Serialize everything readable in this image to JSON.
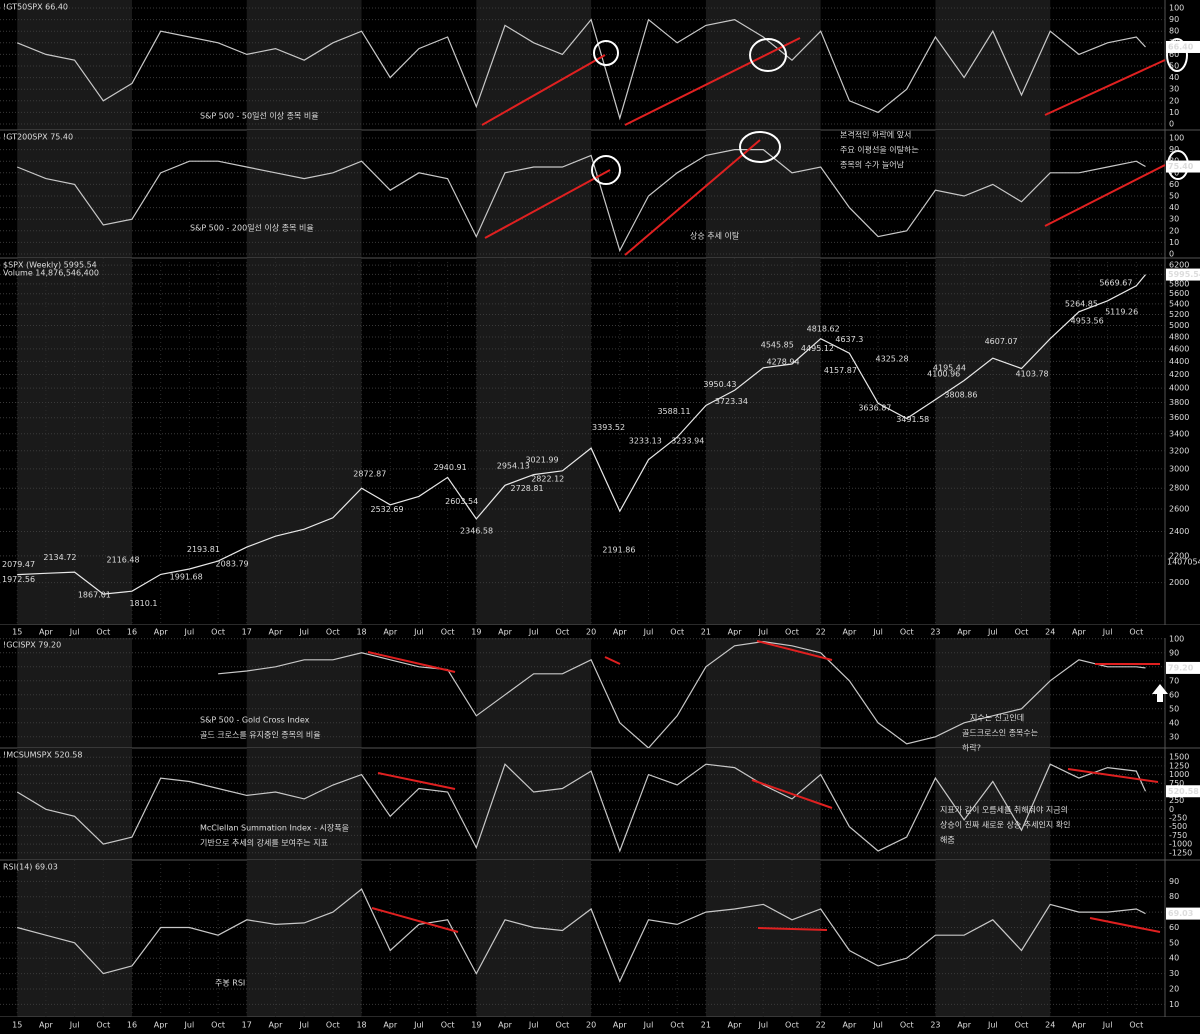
{
  "chart_data": [
    {
      "type": "line",
      "title": "!GT50SPX 66.40",
      "last_label": "66.40",
      "color": "#c8c8c8",
      "x": [
        2015,
        2015.25,
        2015.5,
        2015.75,
        2016,
        2016.25,
        2016.5,
        2016.75,
        2017,
        2017.25,
        2017.5,
        2017.75,
        2018,
        2018.25,
        2018.5,
        2018.75,
        2019,
        2019.25,
        2019.5,
        2019.75,
        2020,
        2020.25,
        2020.5,
        2020.75,
        2021,
        2021.25,
        2021.5,
        2021.75,
        2022,
        2022.25,
        2022.5,
        2022.75,
        2023,
        2023.25,
        2023.5,
        2023.75,
        2024,
        2024.25,
        2024.5,
        2024.75,
        2024.83
      ],
      "values": [
        70,
        60,
        55,
        20,
        35,
        80,
        75,
        70,
        60,
        65,
        55,
        70,
        80,
        40,
        65,
        75,
        15,
        85,
        70,
        60,
        90,
        5,
        90,
        70,
        85,
        90,
        75,
        55,
        80,
        20,
        10,
        30,
        75,
        40,
        80,
        25,
        80,
        60,
        70,
        75,
        66.4
      ],
      "xlim": [
        2014.85,
        2025.0
      ],
      "ylim": [
        0,
        100
      ],
      "yticks": [
        0,
        10,
        20,
        30,
        40,
        50,
        60,
        70,
        80,
        90,
        100
      ],
      "grid": true,
      "texts": [
        "S&P 500 - 50일선 이상 종목 비율"
      ]
    },
    {
      "type": "line",
      "title": "!GT200SPX 75.40",
      "last_label": "75.40",
      "color": "#c8c8c8",
      "x": [
        2015,
        2015.25,
        2015.5,
        2015.75,
        2016,
        2016.25,
        2016.5,
        2016.75,
        2017,
        2017.25,
        2017.5,
        2017.75,
        2018,
        2018.25,
        2018.5,
        2018.75,
        2019,
        2019.25,
        2019.5,
        2019.75,
        2020,
        2020.25,
        2020.5,
        2020.75,
        2021,
        2021.25,
        2021.5,
        2021.75,
        2022,
        2022.25,
        2022.5,
        2022.75,
        2023,
        2023.25,
        2023.5,
        2023.75,
        2024,
        2024.25,
        2024.5,
        2024.75,
        2024.83
      ],
      "values": [
        75,
        65,
        60,
        25,
        30,
        70,
        80,
        80,
        75,
        70,
        65,
        70,
        80,
        55,
        70,
        65,
        15,
        70,
        75,
        75,
        85,
        3,
        50,
        70,
        85,
        90,
        90,
        70,
        75,
        40,
        15,
        20,
        55,
        50,
        60,
        45,
        70,
        70,
        75,
        80,
        75.4
      ],
      "xlim": [
        2014.85,
        2025.0
      ],
      "ylim": [
        0,
        100
      ],
      "yticks": [
        0,
        10,
        20,
        30,
        40,
        50,
        60,
        70,
        80,
        90,
        100
      ],
      "grid": true,
      "texts": [
        "S&P 500 - 200일선 이상 종목 비율",
        "상승 추세 이탈",
        "본격적인 하락에 앞서",
        "주요 이평선을 이탈하는",
        "종목의 수가 늘어남"
      ]
    },
    {
      "type": "line",
      "title": "$SPX (Weekly) 5995.54",
      "subtitle": "Volume 14,876,546,400",
      "last_label": "5995.54",
      "volume_last_label": "1407054",
      "color": "#e8e8e8",
      "log": true,
      "x": [
        2015,
        2015.25,
        2015.5,
        2015.75,
        2016,
        2016.25,
        2016.5,
        2016.75,
        2017,
        2017.25,
        2017.5,
        2017.75,
        2018,
        2018.25,
        2018.5,
        2018.75,
        2019,
        2019.25,
        2019.5,
        2019.75,
        2020,
        2020.25,
        2020.5,
        2020.75,
        2021,
        2021.25,
        2021.5,
        2021.75,
        2022,
        2022.25,
        2022.5,
        2022.75,
        2023,
        2023.25,
        2023.5,
        2023.75,
        2024,
        2024.25,
        2024.5,
        2024.75,
        2024.83
      ],
      "values": [
        2058,
        2068,
        2077,
        1920,
        1940,
        2060,
        2100,
        2160,
        2270,
        2360,
        2420,
        2520,
        2800,
        2640,
        2720,
        2910,
        2510,
        2830,
        2940,
        2980,
        3230,
        2580,
        3100,
        3360,
        3760,
        3970,
        4300,
        4360,
        4770,
        4530,
        3790,
        3590,
        3840,
        4110,
        4450,
        4290,
        4770,
        5250,
        5460,
        5760,
        5995.54
      ],
      "xlim": [
        2014.85,
        2025.0
      ],
      "ylim": [
        1720,
        6360
      ],
      "yticks": [
        2000,
        2200,
        2400,
        2600,
        2800,
        3000,
        3200,
        3400,
        3600,
        3800,
        4000,
        4200,
        4400,
        4600,
        4800,
        5000,
        5200,
        5400,
        5600,
        5800,
        6000,
        6200
      ],
      "grid": true,
      "annotations": [
        {
          "x": 2014.88,
          "value": 2079.47
        },
        {
          "x": 2014.88,
          "value": 1972.56
        },
        {
          "x": 2015.35,
          "value": 2134.72
        },
        {
          "x": 2015.65,
          "value": 1867.01
        },
        {
          "x": 2015.9,
          "value": 2116.48
        },
        {
          "x": 2016.1,
          "value": 1810.1
        },
        {
          "x": 2016.45,
          "value": 1991.68
        },
        {
          "x": 2016.6,
          "value": 2193.81
        },
        {
          "x": 2016.85,
          "value": 2083.79
        },
        {
          "x": 2018.05,
          "value": 2872.87
        },
        {
          "x": 2018.2,
          "value": 2532.69
        },
        {
          "x": 2018.75,
          "value": 2940.91
        },
        {
          "x": 2018.85,
          "value": 2603.54
        },
        {
          "x": 2018.98,
          "value": 2346.58
        },
        {
          "x": 2019.3,
          "value": 2954.13
        },
        {
          "x": 2019.42,
          "value": 2728.81
        },
        {
          "x": 2019.55,
          "value": 3021.99
        },
        {
          "x": 2019.6,
          "value": 2822.12
        },
        {
          "x": 2020.13,
          "value": 3393.52
        },
        {
          "x": 2020.22,
          "value": 2191.86
        },
        {
          "x": 2020.45,
          "value": 3233.13
        },
        {
          "x": 2020.7,
          "value": 3588.11
        },
        {
          "x": 2020.82,
          "value": 3233.94
        },
        {
          "x": 2021.1,
          "value": 3950.43
        },
        {
          "x": 2021.2,
          "value": 3723.34
        },
        {
          "x": 2021.6,
          "value": 4545.85
        },
        {
          "x": 2021.65,
          "value": 4278.94
        },
        {
          "x": 2022.0,
          "value": 4818.62
        },
        {
          "x": 2021.95,
          "value": 4495.12
        },
        {
          "x": 2022.25,
          "value": 4637.3
        },
        {
          "x": 2022.15,
          "value": 4157.87
        },
        {
          "x": 2022.45,
          "value": 3636.87
        },
        {
          "x": 2022.6,
          "value": 4325.28
        },
        {
          "x": 2022.78,
          "value": 3491.58
        },
        {
          "x": 2023.05,
          "value": 4100.96
        },
        {
          "x": 2023.1,
          "value": 4195.44
        },
        {
          "x": 2023.2,
          "value": 3808.86
        },
        {
          "x": 2023.55,
          "value": 4607.07
        },
        {
          "x": 2023.82,
          "value": 4103.78
        },
        {
          "x": 2024.25,
          "value": 5264.85
        },
        {
          "x": 2024.3,
          "value": 4953.56
        },
        {
          "x": 2024.55,
          "value": 5669.67
        },
        {
          "x": 2024.6,
          "value": 5119.26
        }
      ],
      "xticks": [
        {
          "value": 2015,
          "label": "15"
        },
        {
          "value": 2015.25,
          "label": "Apr"
        },
        {
          "value": 2015.5,
          "label": "Jul"
        },
        {
          "value": 2015.75,
          "label": "Oct"
        },
        {
          "value": 2016,
          "label": "16"
        },
        {
          "value": 2016.25,
          "label": "Apr"
        },
        {
          "value": 2016.5,
          "label": "Jul"
        },
        {
          "value": 2016.75,
          "label": "Oct"
        },
        {
          "value": 2017,
          "label": "17"
        },
        {
          "value": 2017.25,
          "label": "Apr"
        },
        {
          "value": 2017.5,
          "label": "Jul"
        },
        {
          "value": 2017.75,
          "label": "Oct"
        },
        {
          "value": 2018,
          "label": "18"
        },
        {
          "value": 2018.25,
          "label": "Apr"
        },
        {
          "value": 2018.5,
          "label": "Jul"
        },
        {
          "value": 2018.75,
          "label": "Oct"
        },
        {
          "value": 2019,
          "label": "19"
        },
        {
          "value": 2019.25,
          "label": "Apr"
        },
        {
          "value": 2019.5,
          "label": "Jul"
        },
        {
          "value": 2019.75,
          "label": "Oct"
        },
        {
          "value": 2020,
          "label": "20"
        },
        {
          "value": 2020.25,
          "label": "Apr"
        },
        {
          "value": 2020.5,
          "label": "Jul"
        },
        {
          "value": 2020.75,
          "label": "Oct"
        },
        {
          "value": 2021,
          "label": "21"
        },
        {
          "value": 2021.25,
          "label": "Apr"
        },
        {
          "value": 2021.5,
          "label": "Jul"
        },
        {
          "value": 2021.75,
          "label": "Oct"
        },
        {
          "value": 2022,
          "label": "22"
        },
        {
          "value": 2022.25,
          "label": "Apr"
        },
        {
          "value": 2022.5,
          "label": "Jul"
        },
        {
          "value": 2022.75,
          "label": "Oct"
        },
        {
          "value": 2023,
          "label": "23"
        },
        {
          "value": 2023.25,
          "label": "Apr"
        },
        {
          "value": 2023.5,
          "label": "Jul"
        },
        {
          "value": 2023.75,
          "label": "Oct"
        },
        {
          "value": 2024,
          "label": "24"
        },
        {
          "value": 2024.25,
          "label": "Apr"
        },
        {
          "value": 2024.5,
          "label": "Jul"
        },
        {
          "value": 2024.75,
          "label": "Oct"
        }
      ]
    },
    {
      "type": "line",
      "title": "!GCISPX 79.20",
      "last_label": "79.20",
      "color": "#c8c8c8",
      "x": [
        2015,
        2015.25,
        2015.5,
        2015.75,
        2016,
        2016.25,
        2016.5,
        2016.75,
        2017,
        2017.25,
        2017.5,
        2017.75,
        2018,
        2018.25,
        2018.5,
        2018.75,
        2019,
        2019.25,
        2019.5,
        2019.75,
        2020,
        2020.25,
        2020.5,
        2020.75,
        2021,
        2021.25,
        2021.5,
        2021.75,
        2022,
        2022.25,
        2022.5,
        2022.75,
        2023,
        2023.25,
        2023.5,
        2023.75,
        2024,
        2024.25,
        2024.5,
        2024.75,
        2024.83
      ],
      "values": [
        null,
        null,
        null,
        null,
        null,
        null,
        null,
        75,
        77,
        80,
        85,
        85,
        90,
        85,
        80,
        78,
        45,
        60,
        75,
        75,
        85,
        40,
        22,
        45,
        80,
        95,
        98,
        95,
        90,
        70,
        40,
        25,
        30,
        40,
        45,
        50,
        70,
        85,
        80,
        80,
        79.2
      ],
      "xlim": [
        2014.85,
        2025.0
      ],
      "ylim": [
        22,
        102
      ],
      "yticks": [
        30,
        40,
        50,
        60,
        70,
        80,
        90,
        100
      ],
      "grid": true,
      "texts": [
        "S&P 500 - Gold Cross Index",
        "골드 크로스를 유지중인 종목의 비율",
        "지수는 신고인데",
        "골드크로스인 종목수는",
        "하락?"
      ]
    },
    {
      "type": "line",
      "title": "!MCSUMSPX 520.58",
      "last_label": "520.58",
      "color": "#c8c8c8",
      "x": [
        2015,
        2015.25,
        2015.5,
        2015.75,
        2016,
        2016.25,
        2016.5,
        2016.75,
        2017,
        2017.25,
        2017.5,
        2017.75,
        2018,
        2018.25,
        2018.5,
        2018.75,
        2019,
        2019.25,
        2019.5,
        2019.75,
        2020,
        2020.25,
        2020.5,
        2020.75,
        2021,
        2021.25,
        2021.5,
        2021.75,
        2022,
        2022.25,
        2022.5,
        2022.75,
        2023,
        2023.25,
        2023.5,
        2023.75,
        2024,
        2024.25,
        2024.5,
        2024.75,
        2024.83
      ],
      "values": [
        500,
        0,
        -200,
        -1000,
        -800,
        900,
        800,
        600,
        400,
        500,
        300,
        700,
        1000,
        -200,
        600,
        500,
        -1100,
        1300,
        500,
        600,
        1100,
        -1200,
        1000,
        700,
        1300,
        1200,
        700,
        300,
        1000,
        -500,
        -1200,
        -800,
        900,
        -300,
        800,
        -600,
        1300,
        900,
        1200,
        1100,
        520.58
      ],
      "xlim": [
        2014.85,
        2025.0
      ],
      "ylim": [
        -1400,
        1650
      ],
      "yticks": [
        -1250,
        -1000,
        -750,
        -500,
        -250,
        0,
        250,
        500,
        750,
        1000,
        1250,
        1500
      ],
      "grid": true,
      "texts": [
        "McClellan Summation Index - 시장폭을",
        "기반으로 추세의 강세를 보여주는 지표",
        "지표가 같이 오름세를 취해줘야 지금의",
        "상승이 진짜 새로운 상승 추세인지 확인",
        "해줌"
      ]
    },
    {
      "type": "line",
      "title": "RSI(14) 69.03",
      "last_label": "69.03",
      "color": "#c8c8c8",
      "x": [
        2015,
        2015.25,
        2015.5,
        2015.75,
        2016,
        2016.25,
        2016.5,
        2016.75,
        2017,
        2017.25,
        2017.5,
        2017.75,
        2018,
        2018.25,
        2018.5,
        2018.75,
        2019,
        2019.25,
        2019.5,
        2019.75,
        2020,
        2020.25,
        2020.5,
        2020.75,
        2021,
        2021.25,
        2021.5,
        2021.75,
        2022,
        2022.25,
        2022.5,
        2022.75,
        2023,
        2023.25,
        2023.5,
        2023.75,
        2024,
        2024.25,
        2024.5,
        2024.75,
        2024.83
      ],
      "values": [
        60,
        55,
        50,
        30,
        35,
        60,
        60,
        55,
        65,
        62,
        63,
        70,
        85,
        45,
        62,
        65,
        30,
        65,
        60,
        58,
        72,
        25,
        65,
        62,
        70,
        72,
        75,
        65,
        72,
        45,
        35,
        40,
        55,
        55,
        65,
        45,
        75,
        70,
        70,
        72,
        69.03
      ],
      "xlim": [
        2014.85,
        2025.0
      ],
      "ylim": [
        5,
        100
      ],
      "yticks": [
        10,
        20,
        30,
        40,
        50,
        60,
        70,
        80,
        90
      ],
      "grid": true,
      "texts": [
        "주봉 RSI"
      ],
      "xticks": [
        {
          "value": 2015,
          "label": "15"
        },
        {
          "value": 2015.25,
          "label": "Apr"
        },
        {
          "value": 2015.5,
          "label": "Jul"
        },
        {
          "value": 2015.75,
          "label": "Oct"
        },
        {
          "value": 2016,
          "label": "16"
        },
        {
          "value": 2016.25,
          "label": "Apr"
        },
        {
          "value": 2016.5,
          "label": "Jul"
        },
        {
          "value": 2016.75,
          "label": "Oct"
        },
        {
          "value": 2017,
          "label": "17"
        },
        {
          "value": 2017.25,
          "label": "Apr"
        },
        {
          "value": 2017.5,
          "label": "Jul"
        },
        {
          "value": 2017.75,
          "label": "Oct"
        },
        {
          "value": 2018,
          "label": "18"
        },
        {
          "value": 2018.25,
          "label": "Apr"
        },
        {
          "value": 2018.5,
          "label": "Jul"
        },
        {
          "value": 2018.75,
          "label": "Oct"
        },
        {
          "value": 2019,
          "label": "19"
        },
        {
          "value": 2019.25,
          "label": "Apr"
        },
        {
          "value": 2019.5,
          "label": "Jul"
        },
        {
          "value": 2019.75,
          "label": "Oct"
        },
        {
          "value": 2020,
          "label": "20"
        },
        {
          "value": 2020.25,
          "label": "Apr"
        },
        {
          "value": 2020.5,
          "label": "Jul"
        },
        {
          "value": 2020.75,
          "label": "Oct"
        },
        {
          "value": 2021,
          "label": "21"
        },
        {
          "value": 2021.25,
          "label": "Apr"
        },
        {
          "value": 2021.5,
          "label": "Jul"
        },
        {
          "value": 2021.75,
          "label": "Oct"
        },
        {
          "value": 2022,
          "label": "22"
        },
        {
          "value": 2022.25,
          "label": "Apr"
        },
        {
          "value": 2022.5,
          "label": "Jul"
        },
        {
          "value": 2022.75,
          "label": "Oct"
        },
        {
          "value": 2023,
          "label": "23"
        },
        {
          "value": 2023.25,
          "label": "Apr"
        },
        {
          "value": 2023.5,
          "label": "Jul"
        },
        {
          "value": 2023.75,
          "label": "Oct"
        },
        {
          "value": 2024,
          "label": "24"
        },
        {
          "value": 2024.25,
          "label": "Apr"
        },
        {
          "value": 2024.5,
          "label": "Jul"
        },
        {
          "value": 2024.75,
          "label": "Oct"
        }
      ]
    }
  ]
}
